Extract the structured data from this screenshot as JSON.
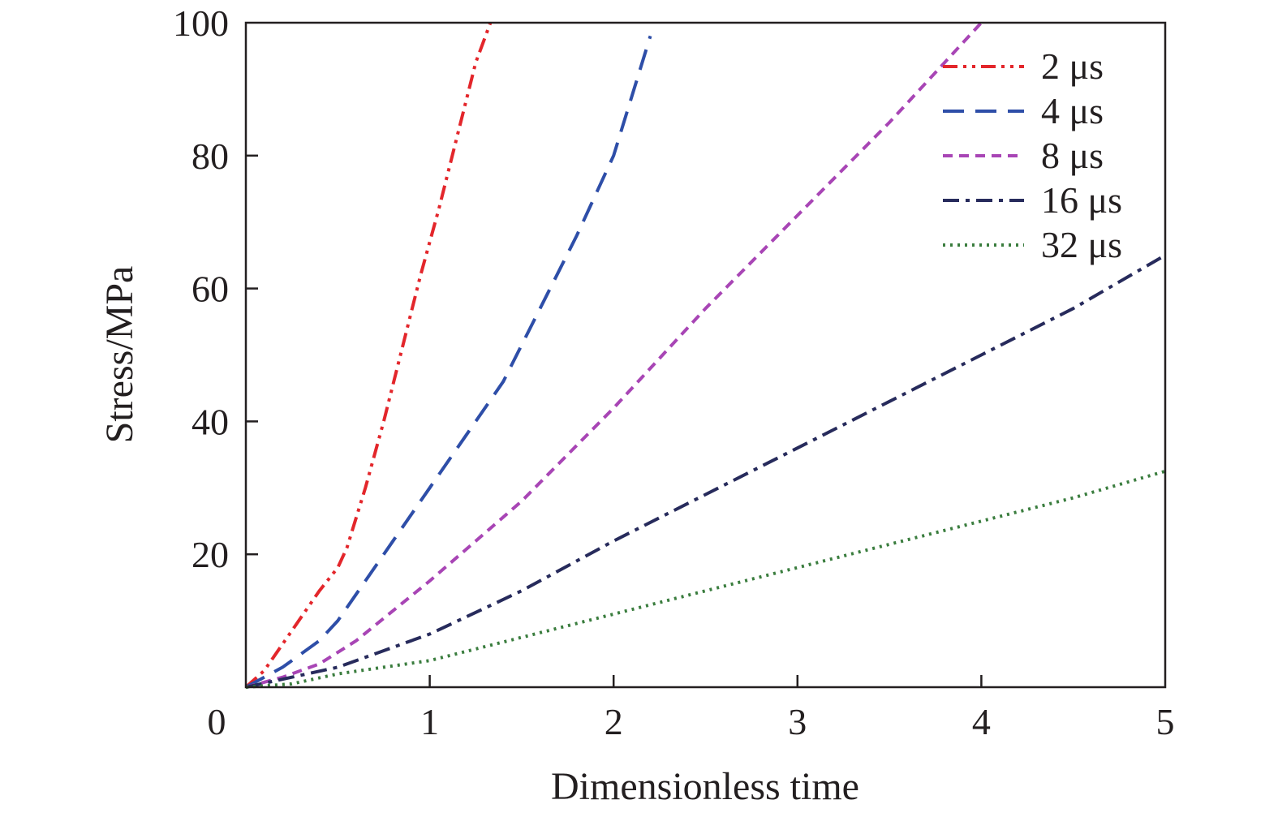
{
  "chart_data": {
    "type": "line",
    "title": "",
    "xlabel": "Dimensionless time",
    "ylabel": "Stress/MPa",
    "xlim": [
      0,
      5
    ],
    "ylim": [
      0,
      100
    ],
    "x_ticks": [
      "0",
      "1",
      "2",
      "3",
      "4",
      "5"
    ],
    "y_ticks": [
      "20",
      "40",
      "60",
      "80",
      "100"
    ],
    "legend_position": "top-right",
    "grid": false,
    "series": [
      {
        "name": "2 μs",
        "color": "#e3262b",
        "dash": "dash-dot-dot",
        "points": [
          [
            0,
            0
          ],
          [
            0.1,
            2.5
          ],
          [
            0.2,
            6.5
          ],
          [
            0.3,
            10.5
          ],
          [
            0.4,
            14.5
          ],
          [
            0.5,
            18
          ],
          [
            0.55,
            21
          ],
          [
            0.65,
            30
          ],
          [
            0.75,
            40
          ],
          [
            0.85,
            51
          ],
          [
            0.95,
            62
          ],
          [
            1.05,
            72
          ],
          [
            1.15,
            83
          ],
          [
            1.25,
            94
          ],
          [
            1.33,
            100
          ]
        ]
      },
      {
        "name": "4 μs",
        "color": "#2e4ea8",
        "dash": "long-dash",
        "points": [
          [
            0,
            0
          ],
          [
            0.2,
            3
          ],
          [
            0.4,
            7
          ],
          [
            0.5,
            10
          ],
          [
            0.6,
            14
          ],
          [
            0.8,
            22
          ],
          [
            1.0,
            30
          ],
          [
            1.2,
            38
          ],
          [
            1.4,
            46
          ],
          [
            1.6,
            57
          ],
          [
            1.8,
            68
          ],
          [
            2.0,
            80
          ],
          [
            2.2,
            98
          ]
        ]
      },
      {
        "name": "8 μs",
        "color": "#a845b5",
        "dash": "short-dash",
        "points": [
          [
            0,
            0
          ],
          [
            0.2,
            1.5
          ],
          [
            0.4,
            3.5
          ],
          [
            0.6,
            7
          ],
          [
            0.8,
            11.5
          ],
          [
            1.0,
            16
          ],
          [
            1.5,
            28
          ],
          [
            2.0,
            42
          ],
          [
            2.5,
            57
          ],
          [
            3.0,
            71
          ],
          [
            3.5,
            85
          ],
          [
            4.0,
            100
          ]
        ]
      },
      {
        "name": "16 μs",
        "color": "#272b5c",
        "dash": "dash-dot",
        "points": [
          [
            0,
            0
          ],
          [
            0.25,
            1.5
          ],
          [
            0.5,
            3
          ],
          [
            0.75,
            5.5
          ],
          [
            1.0,
            8
          ],
          [
            1.5,
            14.5
          ],
          [
            2.0,
            22
          ],
          [
            2.5,
            29
          ],
          [
            3.0,
            36
          ],
          [
            3.5,
            43
          ],
          [
            4.0,
            50
          ],
          [
            4.5,
            57
          ],
          [
            5.0,
            65
          ]
        ]
      },
      {
        "name": "32 μs",
        "color": "#3a7d3e",
        "dash": "dotted",
        "points": [
          [
            0,
            0
          ],
          [
            0.25,
            0.5
          ],
          [
            0.5,
            2
          ],
          [
            0.75,
            3
          ],
          [
            1.0,
            4
          ],
          [
            1.5,
            7.5
          ],
          [
            2.0,
            11
          ],
          [
            2.5,
            14.5
          ],
          [
            3.0,
            18
          ],
          [
            3.5,
            21.5
          ],
          [
            4.0,
            25
          ],
          [
            4.5,
            28.5
          ],
          [
            5.0,
            32.5
          ]
        ]
      }
    ]
  }
}
